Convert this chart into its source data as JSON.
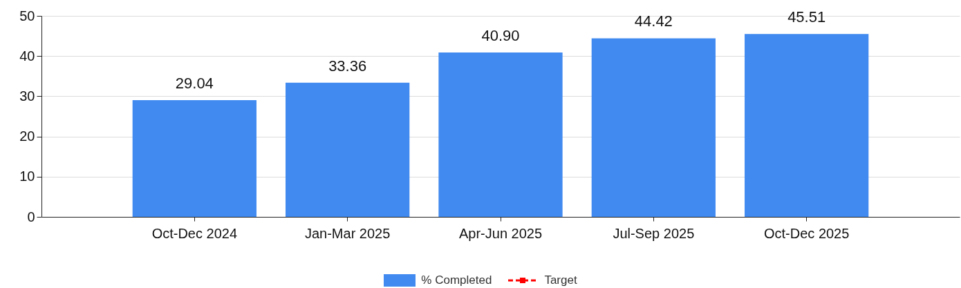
{
  "chart_data": {
    "type": "bar",
    "categories": [
      "Oct-Dec 2024",
      "Jan-Mar 2025",
      "Apr-Jun 2025",
      "Jul-Sep 2025",
      "Oct-Dec 2025"
    ],
    "series": [
      {
        "name": "% Completed",
        "color": "#418af0",
        "values": [
          29.04,
          33.36,
          40.9,
          44.42,
          45.51
        ],
        "value_labels": [
          "29.04",
          "33.36",
          "40.90",
          "44.42",
          "45.51"
        ]
      },
      {
        "name": "Target",
        "type": "line",
        "color": "#ff0000",
        "line_style": "dashed",
        "marker": "square",
        "values": [
          null,
          null,
          null,
          null,
          null
        ]
      }
    ],
    "ylim": [
      0,
      50
    ],
    "yticks": [
      0,
      10,
      20,
      30,
      40,
      50
    ],
    "grid": "y",
    "legend": "bottom"
  }
}
